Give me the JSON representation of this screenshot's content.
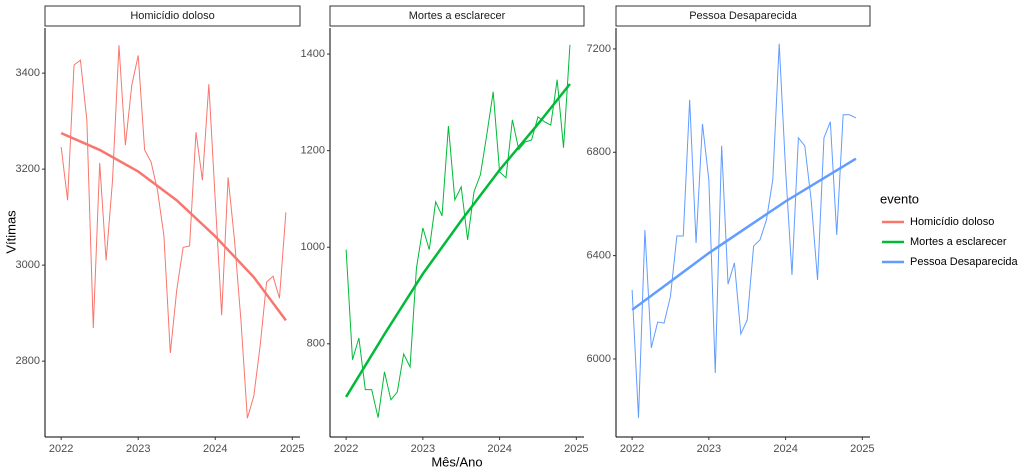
{
  "chart_data": {
    "type": "line",
    "xlabel": "Mês/Ano",
    "ylabel": "Vítimas",
    "legend_title": "evento",
    "x": [
      2022,
      2022.0833,
      2022.1667,
      2022.25,
      2022.3333,
      2022.4167,
      2022.5,
      2022.5833,
      2022.6667,
      2022.75,
      2022.8333,
      2022.9167,
      2023,
      2023.0833,
      2023.1667,
      2023.25,
      2023.3333,
      2023.4167,
      2023.5,
      2023.5833,
      2023.6667,
      2023.75,
      2023.8333,
      2023.9167,
      2024,
      2024.0833,
      2024.1667,
      2024.25,
      2024.3333,
      2024.4167,
      2024.5,
      2024.5833,
      2024.6667,
      2024.75,
      2024.8333,
      2024.9167
    ],
    "xlim": [
      2021.79,
      2025.1
    ],
    "xticks": [
      2022,
      2023,
      2024,
      2025
    ],
    "trend_x": [
      2022,
      2022.5,
      2023,
      2023.5,
      2024,
      2024.5,
      2024.9167
    ],
    "series": [
      {
        "name": "Homicídio doloso",
        "title": "Homicídio doloso",
        "color": "#f8766d",
        "values": [
          3246,
          3135,
          3417,
          3427,
          3302,
          2869,
          3213,
          3010,
          3177,
          3458,
          3250,
          3375,
          3437,
          3240,
          3215,
          3156,
          3062,
          2817,
          2948,
          3037,
          3040,
          3277,
          3177,
          3377,
          3135,
          2896,
          3183,
          3052,
          2885,
          2681,
          2727,
          2833,
          2965,
          2977,
          2931,
          3110
        ],
        "trend": [
          3275,
          3240,
          3195,
          3135,
          3060,
          2975,
          2885
        ],
        "ylim": [
          2642,
          3494
        ],
        "yticks": [
          2800,
          3000,
          3200,
          3400
        ]
      },
      {
        "name": "Mortes a esclarecer",
        "title": "Mortes a esclarecer",
        "color": "#00ba38",
        "values": [
          995,
          767,
          812,
          705,
          705,
          647,
          742,
          684,
          700,
          779,
          752,
          957,
          1040,
          995,
          1094,
          1065,
          1251,
          1098,
          1125,
          1015,
          1115,
          1150,
          1233,
          1322,
          1156,
          1144,
          1264,
          1202,
          1218,
          1222,
          1270,
          1260,
          1253,
          1347,
          1206,
          1419
        ],
        "trend": [
          690,
          820,
          945,
          1055,
          1160,
          1255,
          1338
        ],
        "ylim": [
          607,
          1454
        ],
        "yticks": [
          800,
          1000,
          1200,
          1400
        ]
      },
      {
        "name": "Pessoa Desaparecida",
        "title": "Pessoa Desaparecida",
        "color": "#619cff",
        "values": [
          6267,
          5772,
          6499,
          6043,
          6143,
          6139,
          6243,
          6476,
          6476,
          7003,
          6449,
          6910,
          6693,
          5946,
          6825,
          6290,
          6372,
          6097,
          6151,
          6437,
          6461,
          6538,
          6693,
          7220,
          6732,
          6325,
          6856,
          6825,
          6615,
          6306,
          6856,
          6918,
          6480,
          6945,
          6945,
          6933
        ],
        "trend": [
          6190,
          6300,
          6410,
          6510,
          6610,
          6700,
          6775
        ],
        "ylim": [
          5698,
          7281
        ],
        "yticks": [
          6000,
          6400,
          6800,
          7200
        ]
      }
    ]
  }
}
